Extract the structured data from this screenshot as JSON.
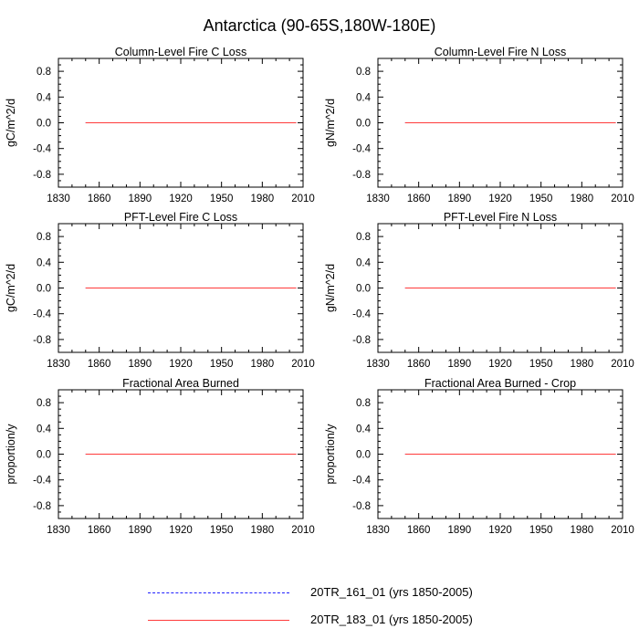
{
  "title": "Antarctica (90-65S,180W-180E)",
  "colors": {
    "series1": "#1f1fff",
    "series2": "#ff3a3a",
    "axis": "#000000"
  },
  "chart_data": [
    {
      "type": "line",
      "title": "Column-Level Fire C Loss",
      "ylabel": "gC/m^2/d",
      "xlim": [
        1830,
        2010
      ],
      "ylim": [
        -1,
        1
      ],
      "xticks": [
        1830,
        1860,
        1890,
        1920,
        1950,
        1980,
        2010
      ],
      "yticks": [
        -0.8,
        -0.4,
        0.0,
        0.4,
        0.8
      ],
      "ytick_labels": [
        "-0.8",
        "-0.4",
        "0.0",
        "0.4",
        "0.8"
      ],
      "series": [
        {
          "name": "20TR_161_01 (yrs 1850-2005)",
          "style": "dashed",
          "x": [
            1850,
            2005
          ],
          "y": [
            0,
            0
          ]
        },
        {
          "name": "20TR_183_01 (yrs 1850-2005)",
          "style": "solid",
          "x": [
            1850,
            2005
          ],
          "y": [
            0,
            0
          ]
        }
      ]
    },
    {
      "type": "line",
      "title": "Column-Level Fire N Loss",
      "ylabel": "gN/m^2/d",
      "xlim": [
        1830,
        2010
      ],
      "ylim": [
        -1,
        1
      ],
      "xticks": [
        1830,
        1860,
        1890,
        1920,
        1950,
        1980,
        2010
      ],
      "yticks": [
        -0.8,
        -0.4,
        0.0,
        0.4,
        0.8
      ],
      "ytick_labels": [
        "-0.8",
        "-0.4",
        "0.0",
        "0.4",
        "0.8"
      ],
      "series": [
        {
          "name": "20TR_161_01 (yrs 1850-2005)",
          "style": "dashed",
          "x": [
            1850,
            2005
          ],
          "y": [
            0,
            0
          ]
        },
        {
          "name": "20TR_183_01 (yrs 1850-2005)",
          "style": "solid",
          "x": [
            1850,
            2005
          ],
          "y": [
            0,
            0
          ]
        }
      ]
    },
    {
      "type": "line",
      "title": "PFT-Level Fire C Loss",
      "ylabel": "gC/m^2/d",
      "xlim": [
        1830,
        2010
      ],
      "ylim": [
        -1,
        1
      ],
      "xticks": [
        1830,
        1860,
        1890,
        1920,
        1950,
        1980,
        2010
      ],
      "yticks": [
        -0.8,
        -0.4,
        0.0,
        0.4,
        0.8
      ],
      "ytick_labels": [
        "-0.8",
        "-0.4",
        "0.0",
        "0.4",
        "0.8"
      ],
      "series": [
        {
          "name": "20TR_161_01 (yrs 1850-2005)",
          "style": "dashed",
          "x": [
            1850,
            2005
          ],
          "y": [
            0,
            0
          ]
        },
        {
          "name": "20TR_183_01 (yrs 1850-2005)",
          "style": "solid",
          "x": [
            1850,
            2005
          ],
          "y": [
            0,
            0
          ]
        }
      ]
    },
    {
      "type": "line",
      "title": "PFT-Level Fire N Loss",
      "ylabel": "gN/m^2/d",
      "xlim": [
        1830,
        2010
      ],
      "ylim": [
        -1,
        1
      ],
      "xticks": [
        1830,
        1860,
        1890,
        1920,
        1950,
        1980,
        2010
      ],
      "yticks": [
        -0.8,
        -0.4,
        0.0,
        0.4,
        0.8
      ],
      "ytick_labels": [
        "-0.8",
        "-0.4",
        "0.0",
        "0.4",
        "0.8"
      ],
      "series": [
        {
          "name": "20TR_161_01 (yrs 1850-2005)",
          "style": "dashed",
          "x": [
            1850,
            2005
          ],
          "y": [
            0,
            0
          ]
        },
        {
          "name": "20TR_183_01 (yrs 1850-2005)",
          "style": "solid",
          "x": [
            1850,
            2005
          ],
          "y": [
            0,
            0
          ]
        }
      ]
    },
    {
      "type": "line",
      "title": "Fractional Area Burned",
      "ylabel": "proportion/y",
      "xlim": [
        1830,
        2010
      ],
      "ylim": [
        -1,
        1
      ],
      "xticks": [
        1830,
        1860,
        1890,
        1920,
        1950,
        1980,
        2010
      ],
      "yticks": [
        -0.8,
        -0.4,
        0.0,
        0.4,
        0.8
      ],
      "ytick_labels": [
        "-0.8",
        "-0.4",
        "0.0",
        "0.4",
        "0.8"
      ],
      "series": [
        {
          "name": "20TR_161_01 (yrs 1850-2005)",
          "style": "dashed",
          "x": [
            1850,
            2005
          ],
          "y": [
            0,
            0
          ]
        },
        {
          "name": "20TR_183_01 (yrs 1850-2005)",
          "style": "solid",
          "x": [
            1850,
            2005
          ],
          "y": [
            0,
            0
          ]
        }
      ]
    },
    {
      "type": "line",
      "title": "Fractional Area Burned - Crop",
      "ylabel": "proportion/y",
      "xlim": [
        1830,
        2010
      ],
      "ylim": [
        -1,
        1
      ],
      "xticks": [
        1830,
        1860,
        1890,
        1920,
        1950,
        1980,
        2010
      ],
      "yticks": [
        -0.8,
        -0.4,
        0.0,
        0.4,
        0.8
      ],
      "ytick_labels": [
        "-0.8",
        "-0.4",
        "0.0",
        "0.4",
        "0.8"
      ],
      "series": [
        {
          "name": "20TR_161_01 (yrs 1850-2005)",
          "style": "dashed",
          "x": [
            1850,
            2005
          ],
          "y": [
            0,
            0
          ]
        },
        {
          "name": "20TR_183_01 (yrs 1850-2005)",
          "style": "solid",
          "x": [
            1850,
            2005
          ],
          "y": [
            0,
            0
          ]
        }
      ]
    }
  ],
  "legend": [
    {
      "label": "20TR_161_01 (yrs 1850-2005)",
      "style": "dashed"
    },
    {
      "label": "20TR_183_01 (yrs 1850-2005)",
      "style": "solid"
    }
  ]
}
